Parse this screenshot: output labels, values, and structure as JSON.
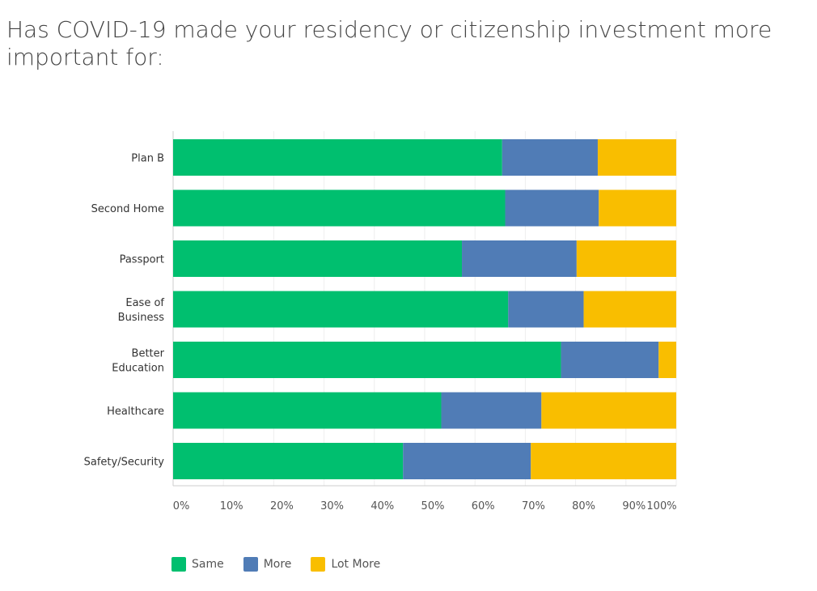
{
  "chart_data": {
    "type": "bar",
    "orientation": "horizontal",
    "stacked": true,
    "title": "Has COVID-19 made your residency or citizenship investment more important for:",
    "categories": [
      "Plan B",
      "Second Home",
      "Passport",
      "Ease of Business",
      "Better Education",
      "Healthcare",
      "Safety/Security"
    ],
    "series": [
      {
        "name": "Same",
        "color": "#00bf6f",
        "values": [
          65.4,
          66.0,
          57.4,
          66.6,
          77.1,
          53.3,
          45.7
        ]
      },
      {
        "name": "More",
        "color": "#507cb6",
        "values": [
          19.0,
          18.6,
          22.8,
          15.0,
          19.4,
          19.9,
          25.4
        ]
      },
      {
        "name": "Lot More",
        "color": "#f9be00",
        "values": [
          15.6,
          15.4,
          19.8,
          18.4,
          3.5,
          26.8,
          28.9
        ]
      }
    ],
    "xlim": [
      0,
      100
    ],
    "xticks": [
      "0%",
      "10%",
      "20%",
      "30%",
      "40%",
      "50%",
      "60%",
      "70%",
      "80%",
      "90%",
      "100%"
    ],
    "grid": true,
    "legend": "bottom-left"
  }
}
